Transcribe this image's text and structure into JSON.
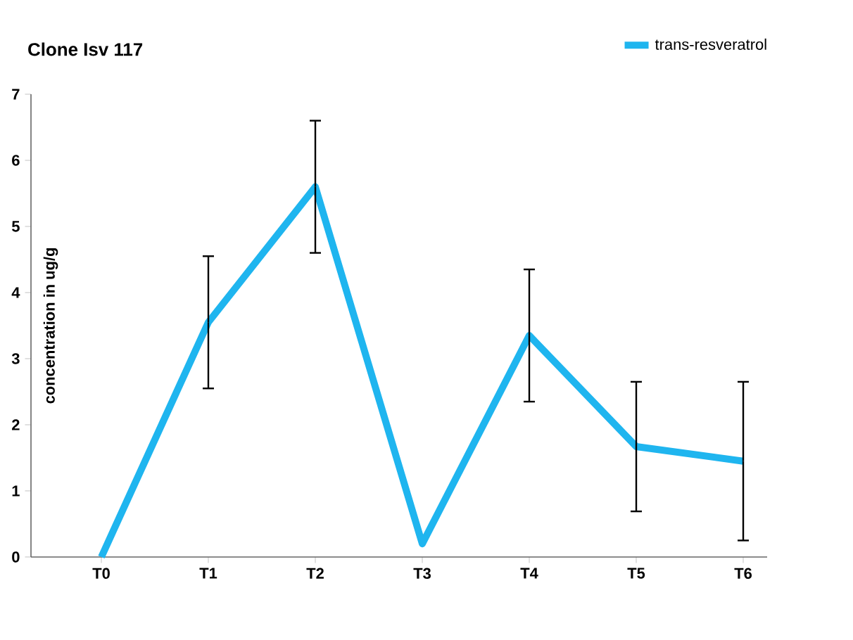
{
  "chart_data": {
    "type": "line",
    "title": "Clone Isv 117",
    "ylabel": "concentration in  ug/g",
    "categories": [
      "T0",
      "T1",
      "T2",
      "T3",
      "T4",
      "T5",
      "T6"
    ],
    "series": [
      {
        "name": "trans-resveratrol",
        "color": "#1fb5ef",
        "values": [
          0,
          3.55,
          5.6,
          0.2,
          3.35,
          1.67,
          1.45
        ],
        "errors": [
          null,
          1,
          1,
          null,
          1,
          0.98,
          1.2
        ]
      }
    ],
    "ylim": [
      0,
      7
    ],
    "yticks": [
      0,
      1,
      2,
      3,
      4,
      5,
      6,
      7
    ],
    "grid": false,
    "legend": "top right",
    "marker": "none",
    "line_style": "solid"
  }
}
